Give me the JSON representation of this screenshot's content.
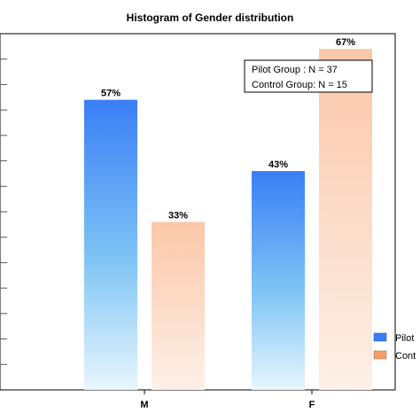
{
  "chart_data": {
    "type": "bar",
    "title": "Histogram of Gender distribution",
    "categories": [
      "M",
      "F"
    ],
    "series": [
      {
        "name": "Pilot Group",
        "values": [
          57,
          43
        ],
        "labels": [
          "57%",
          "43%"
        ],
        "color": "#3a7ef5"
      },
      {
        "name": "Control Group",
        "values": [
          33,
          67
        ],
        "labels": [
          "33%",
          "67%"
        ],
        "color": "#f59d6c"
      }
    ],
    "ylim": [
      0,
      70
    ],
    "grid": "y",
    "annotation": {
      "line1": "Pilot Group :  N = 37",
      "line2": "Control Group:  N = 15"
    },
    "legend": {
      "placement": "bottom-right",
      "entries": [
        "Pilot",
        "Cont"
      ]
    }
  }
}
